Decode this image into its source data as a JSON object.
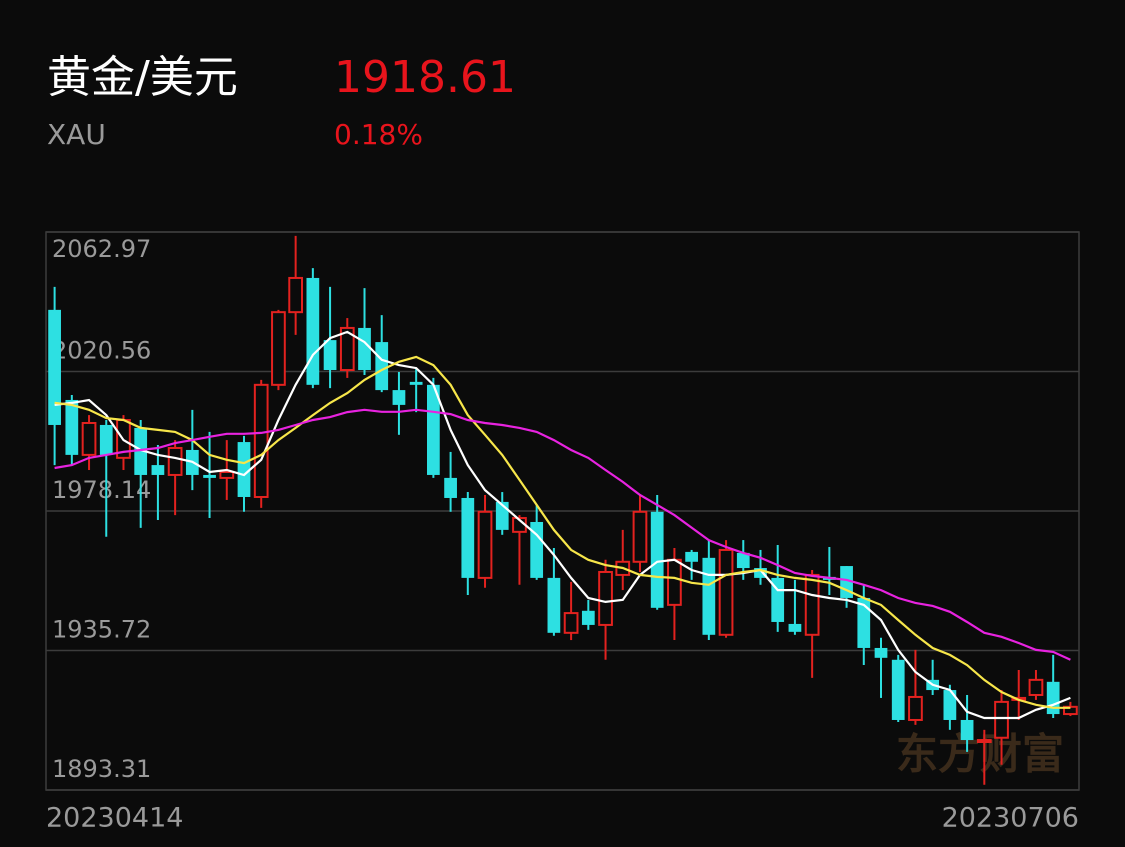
{
  "header": {
    "title": "黄金/美元",
    "symbol": "XAU",
    "price": "1918.61",
    "change": "0.18%"
  },
  "chart_data": {
    "type": "candlestick",
    "watermark": "东方财富",
    "categories": [
      "20230414",
      null,
      null,
      null,
      null,
      null,
      null,
      null,
      null,
      null,
      null,
      null,
      null,
      null,
      null,
      null,
      null,
      null,
      null,
      null,
      null,
      null,
      null,
      null,
      null,
      null,
      null,
      null,
      null,
      null,
      null,
      null,
      null,
      null,
      null,
      null,
      null,
      null,
      null,
      null,
      null,
      null,
      null,
      null,
      null,
      null,
      null,
      null,
      null,
      null,
      null,
      null,
      null,
      null,
      null,
      null,
      null,
      null,
      null,
      "20230706"
    ],
    "open": [
      2039.3,
      2011.9,
      1995.2,
      2004.3,
      1994.3,
      2003.4,
      1992.1,
      1989.1,
      1996.7,
      1989.1,
      1988.2,
      1999.1,
      1982.4,
      2016.5,
      2038.6,
      2049.0,
      2030.1,
      2021.0,
      2033.8,
      2029.5,
      2014.9,
      2017.4,
      2016.5,
      1988.2,
      1982.1,
      1957.8,
      1980.9,
      1971.8,
      1974.8,
      1957.8,
      1941.1,
      1947.8,
      1943.5,
      1958.7,
      1962.7,
      1977.9,
      1949.6,
      1965.7,
      1963.9,
      1940.5,
      1965.4,
      1960.8,
      1957.8,
      1943.8,
      1940.5,
      1958.1,
      1961.4,
      1951.7,
      1936.5,
      1932.9,
      1914.6,
      1926.8,
      1923.7,
      1914.6,
      1907.9,
      1909.2,
      1920.7,
      1922.2,
      1926.2,
      1916.4
    ],
    "high": [
      2046.3,
      2013.4,
      2007.3,
      2005.8,
      2007.3,
      2005.8,
      1998.2,
      1999.7,
      2008.9,
      2002.2,
      1999.7,
      2001.0,
      2018.0,
      2039.3,
      2061.8,
      2052.0,
      2046.3,
      2036.8,
      2045.9,
      2037.7,
      2020.4,
      2021.6,
      2018.6,
      1996.1,
      1983.9,
      1983.0,
      1983.9,
      1976.9,
      1980.0,
      1966.9,
      1956.6,
      1951.1,
      1963.3,
      1972.4,
      1983.0,
      1983.0,
      1966.9,
      1966.3,
      1969.3,
      1969.3,
      1969.3,
      1966.3,
      1967.8,
      1957.2,
      1960.2,
      1967.2,
      1961.4,
      1955.7,
      1939.6,
      1934.4,
      1935.9,
      1932.9,
      1925.3,
      1922.2,
      1911.6,
      1923.7,
      1929.8,
      1929.8,
      1934.4,
      1920.1
    ],
    "low": [
      1992.1,
      1992.1,
      1990.6,
      1970.3,
      1990.6,
      1973.0,
      1975.4,
      1976.9,
      1984.5,
      1976.0,
      1981.5,
      1977.9,
      1979.1,
      2014.9,
      2031.7,
      2015.5,
      2015.5,
      2018.6,
      2019.5,
      2014.3,
      2001.3,
      2008.2,
      1988.2,
      1977.9,
      1952.6,
      1954.8,
      1970.9,
      1955.7,
      1957.2,
      1940.2,
      1938.9,
      1942.0,
      1932.9,
      1954.1,
      1959.6,
      1948.1,
      1938.9,
      1957.2,
      1938.9,
      1939.6,
      1957.2,
      1955.7,
      1941.4,
      1940.5,
      1927.4,
      1952.6,
      1948.7,
      1931.3,
      1921.3,
      1914.0,
      1913.1,
      1922.2,
      1911.6,
      1904.9,
      1894.9,
      1901.0,
      1914.6,
      1920.7,
      1915.2,
      1915.8
    ],
    "close": [
      2004.3,
      1995.2,
      2004.9,
      1995.2,
      2005.8,
      1989.1,
      1989.1,
      1997.3,
      1989.1,
      1988.2,
      1990.0,
      1982.4,
      2016.5,
      2038.6,
      2049.0,
      2016.5,
      2021.0,
      2033.8,
      2021.0,
      2014.9,
      2010.4,
      2016.5,
      1989.1,
      1982.1,
      1957.8,
      1977.9,
      1972.4,
      1976.0,
      1957.8,
      1941.1,
      1947.1,
      1943.5,
      1959.6,
      1962.7,
      1977.9,
      1948.7,
      1963.3,
      1962.7,
      1940.5,
      1966.3,
      1960.8,
      1957.8,
      1944.4,
      1941.4,
      1958.7,
      1957.2,
      1951.7,
      1936.5,
      1933.5,
      1914.6,
      1921.6,
      1923.7,
      1914.6,
      1908.5,
      1908.5,
      1920.1,
      1921.3,
      1926.8,
      1916.4,
      1918.6
    ],
    "up_color": "#e3221f",
    "down_color": "#2de0e2",
    "ma_lines": [
      {
        "color": "#ffffff",
        "values": [
          2010.4,
          2011.0,
          2011.9,
          2007.3,
          1999.7,
          1996.7,
          1995.2,
          1994.3,
          1993.1,
          1990.0,
          1990.6,
          1989.1,
          1993.7,
          2005.8,
          2016.5,
          2025.6,
          2030.7,
          2032.6,
          2029.5,
          2024.1,
          2022.5,
          2021.6,
          2016.5,
          2002.8,
          1992.1,
          1984.5,
          1980.0,
          1975.4,
          1970.9,
          1964.8,
          1957.8,
          1951.7,
          1950.5,
          1951.1,
          1958.7,
          1962.7,
          1963.3,
          1960.2,
          1958.7,
          1958.7,
          1959.3,
          1960.2,
          1954.1,
          1954.1,
          1952.6,
          1951.7,
          1951.1,
          1949.6,
          1945.0,
          1935.9,
          1929.2,
          1925.3,
          1923.7,
          1917.1,
          1915.2,
          1915.2,
          1915.2,
          1917.7,
          1919.2,
          1921.3
        ]
      },
      {
        "color": "#f7e64a",
        "values": [
          2011.0,
          2010.4,
          2008.9,
          2006.4,
          2005.8,
          2003.4,
          2002.8,
          2002.2,
          1999.7,
          1995.2,
          1993.7,
          1992.7,
          1995.2,
          1999.7,
          2003.4,
          2007.3,
          2011.0,
          2014.0,
          2018.0,
          2021.0,
          2023.5,
          2025.0,
          2022.5,
          2016.5,
          2007.3,
          2001.3,
          1995.2,
          1987.6,
          1980.0,
          1972.4,
          1966.3,
          1963.3,
          1961.7,
          1960.8,
          1958.7,
          1958.1,
          1957.8,
          1956.3,
          1955.7,
          1958.7,
          1959.6,
          1960.2,
          1958.7,
          1957.8,
          1957.2,
          1956.3,
          1954.1,
          1951.7,
          1949.6,
          1945.0,
          1940.5,
          1936.5,
          1934.4,
          1931.3,
          1926.8,
          1923.1,
          1920.7,
          1919.2,
          1918.3,
          1918.3
        ]
      },
      {
        "color": "#e823e0",
        "values": [
          1991.2,
          1992.1,
          1994.3,
          1995.2,
          1996.1,
          1996.7,
          1997.3,
          1998.8,
          1999.7,
          2000.7,
          2001.6,
          2001.6,
          2001.9,
          2002.8,
          2004.3,
          2005.8,
          2006.7,
          2008.2,
          2008.9,
          2008.3,
          2008.3,
          2008.9,
          2008.3,
          2007.6,
          2005.8,
          2004.9,
          2004.3,
          2003.4,
          2002.2,
          1999.7,
          1996.7,
          1994.3,
          1990.6,
          1987.0,
          1983.0,
          1980.0,
          1976.9,
          1973.1,
          1969.3,
          1967.2,
          1965.4,
          1963.9,
          1961.7,
          1959.3,
          1958.4,
          1957.8,
          1957.2,
          1955.7,
          1954.1,
          1951.7,
          1950.2,
          1949.3,
          1947.5,
          1944.4,
          1941.1,
          1939.9,
          1938.0,
          1935.9,
          1935.3,
          1932.9
        ]
      }
    ],
    "ylim": [
      1893.31,
      2062.97
    ],
    "yticks": [
      1893.31,
      1935.72,
      1978.14,
      2020.56,
      2062.97
    ],
    "grid": true
  }
}
